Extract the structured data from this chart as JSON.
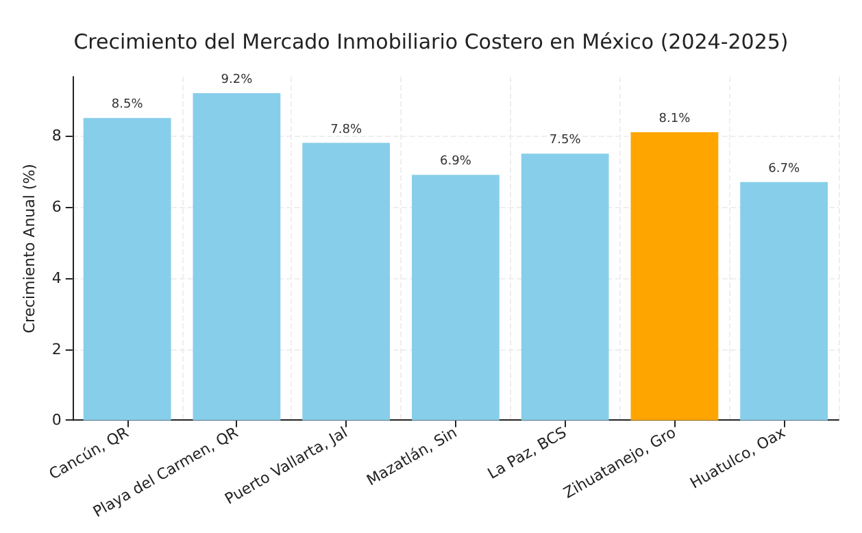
{
  "chart_data": {
    "type": "bar",
    "title": "Crecimiento del Mercado Inmobiliario Costero en México (2024-2025)",
    "ylabel": "Crecimiento Anual (%)",
    "categories": [
      "Cancún, QR",
      "Playa del Carmen, QR",
      "Puerto Vallarta, Jal",
      "Mazatlán, Sin",
      "La Paz, BCS",
      "Zihuatanejo, Gro",
      "Huatulco, Oax"
    ],
    "values": [
      8.5,
      9.2,
      7.8,
      6.9,
      7.5,
      8.1,
      6.7
    ],
    "colors": [
      "#87ceeb",
      "#87ceeb",
      "#87ceeb",
      "#87ceeb",
      "#87ceeb",
      "#ffa500",
      "#87ceeb"
    ],
    "value_labels": [
      "8.5%",
      "9.2%",
      "7.8%",
      "6.9%",
      "7.5%",
      "8.1%",
      "6.7%"
    ],
    "ylim": [
      0,
      9.66
    ],
    "yticks": [
      0,
      2,
      4,
      6,
      8
    ],
    "grid": true
  }
}
